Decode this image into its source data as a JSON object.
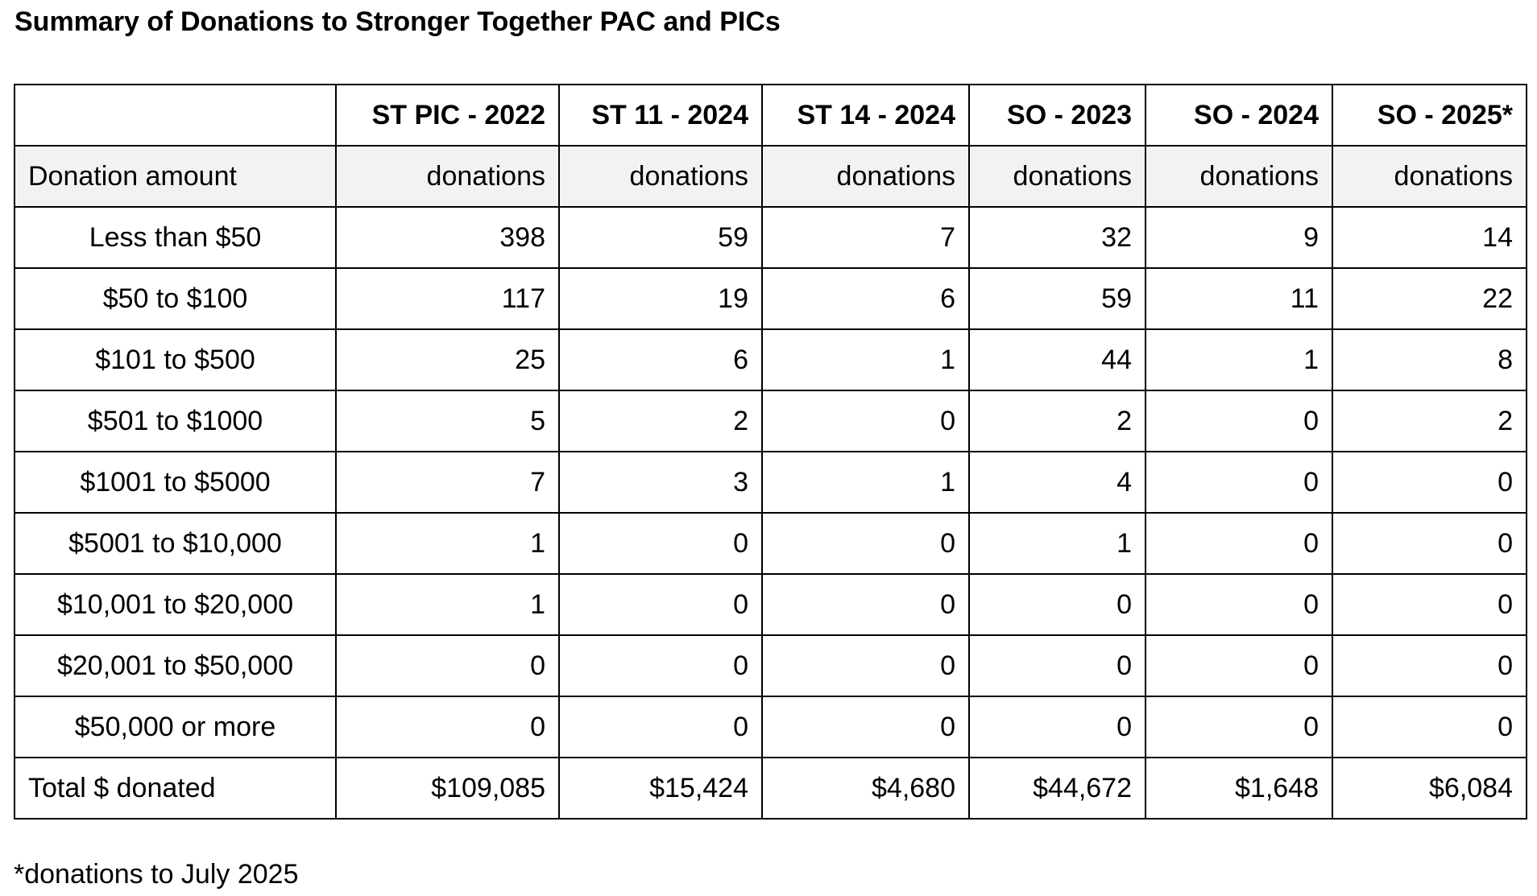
{
  "title": "Summary of Donations to Stronger Together PAC and PICs",
  "table": {
    "headers": [
      "",
      "ST PIC - 2022",
      "ST 11 - 2024",
      "ST 14 - 2024",
      "SO - 2023",
      "SO - 2024",
      "SO - 2025*"
    ],
    "subheader": {
      "label": "Donation amount",
      "cells": [
        "donations",
        "donations",
        "donations",
        "donations",
        "donations",
        "donations"
      ]
    },
    "rows": [
      {
        "label": "Less than $50",
        "values": [
          "398",
          "59",
          "7",
          "32",
          "9",
          "14"
        ]
      },
      {
        "label": "$50 to $100",
        "values": [
          "117",
          "19",
          "6",
          "59",
          "11",
          "22"
        ]
      },
      {
        "label": "$101 to $500",
        "values": [
          "25",
          "6",
          "1",
          "44",
          "1",
          "8"
        ]
      },
      {
        "label": "$501 to $1000",
        "values": [
          "5",
          "2",
          "0",
          "2",
          "0",
          "2"
        ]
      },
      {
        "label": "$1001 to $5000",
        "values": [
          "7",
          "3",
          "1",
          "4",
          "0",
          "0"
        ]
      },
      {
        "label": "$5001 to $10,000",
        "values": [
          "1",
          "0",
          "0",
          "1",
          "0",
          "0"
        ]
      },
      {
        "label": "$10,001 to $20,000",
        "values": [
          "1",
          "0",
          "0",
          "0",
          "0",
          "0"
        ]
      },
      {
        "label": "$20,001 to $50,000",
        "values": [
          "0",
          "0",
          "0",
          "0",
          "0",
          "0"
        ]
      },
      {
        "label": "$50,000 or more",
        "values": [
          "0",
          "0",
          "0",
          "0",
          "0",
          "0"
        ]
      }
    ],
    "total": {
      "label": "Total $ donated",
      "values": [
        "$109,085",
        "$15,424",
        "$4,680",
        "$44,672",
        "$1,648",
        "$6,084"
      ]
    }
  },
  "footnote": "*donations to July 2025"
}
